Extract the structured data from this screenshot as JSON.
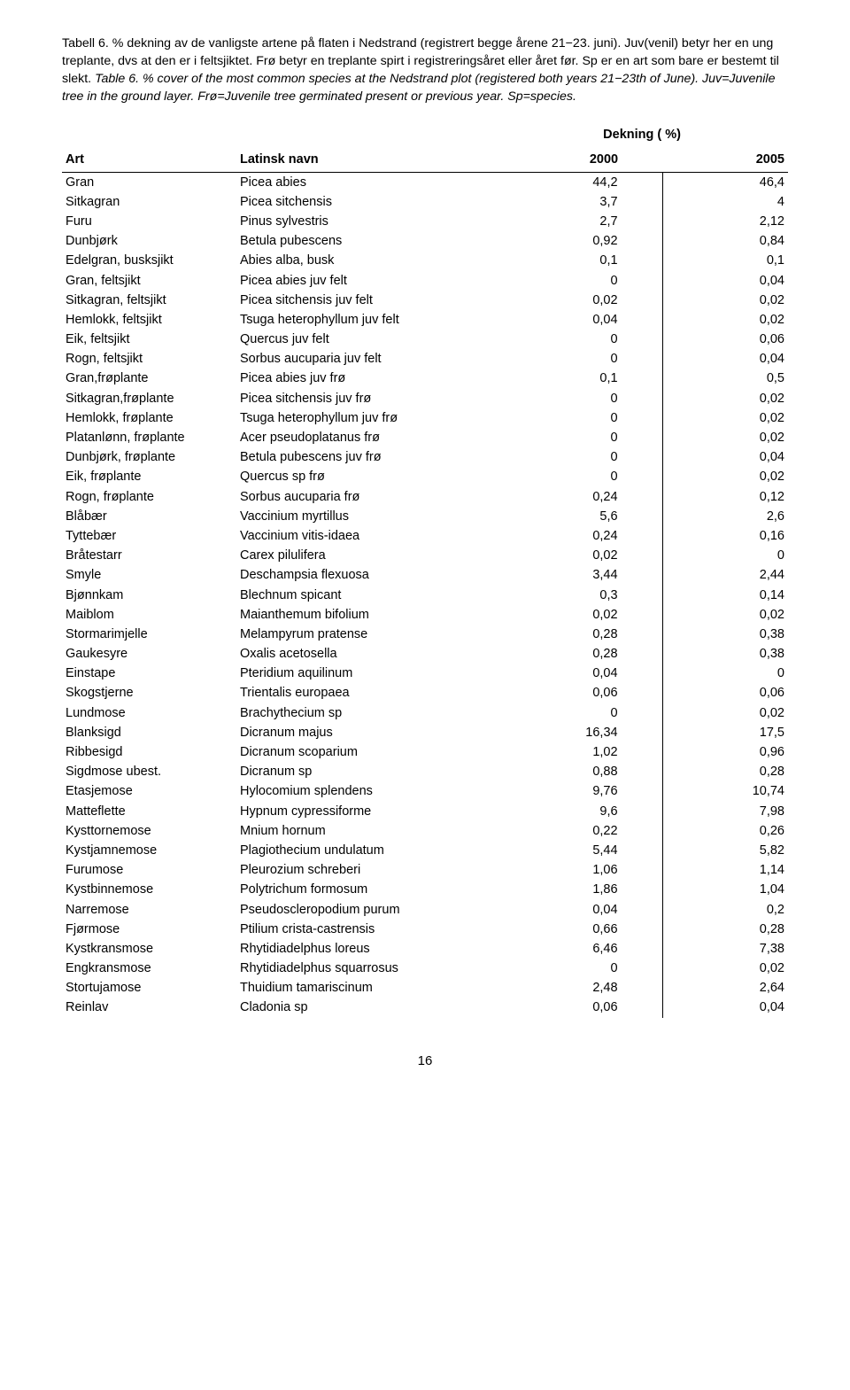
{
  "caption": {
    "norwegian_part1": "Tabell 6. % dekning av de vanligste artene på flaten i Nedstrand (registrert begge årene 21−23. juni). Juv(venil) betyr her en ung treplante, dvs at den er i feltsjiktet. Frø betyr en treplante spirt i registreringsåret eller året før. Sp er en art som bare er bestemt til slekt.",
    "english_part": "Table 6. % cover of the most common species at the Nedstrand plot (registered both years 21−23th of June). Juv=Juvenile tree in the ground layer. Frø=Juvenile tree germinated present or previous year. Sp=species."
  },
  "headers": {
    "dekning": "Dekning ( %)",
    "art": "Art",
    "latin": "Latinsk navn",
    "y2000": "2000",
    "y2005": "2005"
  },
  "rows": [
    {
      "art": "Gran",
      "latin": "Picea abies",
      "v1": "44,2",
      "v2": "46,4"
    },
    {
      "art": "Sitkagran",
      "latin": "Picea sitchensis",
      "v1": "3,7",
      "v2": "4"
    },
    {
      "art": "Furu",
      "latin": "Pinus sylvestris",
      "v1": "2,7",
      "v2": "2,12"
    },
    {
      "art": "Dunbjørk",
      "latin": "Betula pubescens",
      "v1": "0,92",
      "v2": "0,84"
    },
    {
      "art": "Edelgran, busksjikt",
      "latin": "Abies alba, busk",
      "v1": "0,1",
      "v2": "0,1"
    },
    {
      "art": "Gran, feltsjikt",
      "latin": "Picea abies juv felt",
      "v1": "0",
      "v2": "0,04"
    },
    {
      "art": "Sitkagran, feltsjikt",
      "latin": "Picea sitchensis juv felt",
      "v1": "0,02",
      "v2": "0,02"
    },
    {
      "art": "Hemlokk, feltsjikt",
      "latin": "Tsuga heterophyllum juv felt",
      "v1": "0,04",
      "v2": "0,02"
    },
    {
      "art": "Eik, feltsjikt",
      "latin": "Quercus juv felt",
      "v1": "0",
      "v2": "0,06"
    },
    {
      "art": "Rogn, feltsjikt",
      "latin": "Sorbus aucuparia juv felt",
      "v1": "0",
      "v2": "0,04"
    },
    {
      "art": "Gran,frøplante",
      "latin": "Picea abies juv frø",
      "v1": "0,1",
      "v2": "0,5"
    },
    {
      "art": "Sitkagran,frøplante",
      "latin": "Picea sitchensis juv frø",
      "v1": "0",
      "v2": "0,02"
    },
    {
      "art": "Hemlokk, frøplante",
      "latin": "Tsuga heterophyllum juv frø",
      "v1": "0",
      "v2": "0,02"
    },
    {
      "art": "Platanlønn, frøplante",
      "latin": "Acer pseudoplatanus frø",
      "v1": "0",
      "v2": "0,02"
    },
    {
      "art": "Dunbjørk, frøplante",
      "latin": "Betula pubescens juv frø",
      "v1": "0",
      "v2": "0,04"
    },
    {
      "art": "Eik, frøplante",
      "latin": "Quercus sp frø",
      "v1": "0",
      "v2": "0,02"
    },
    {
      "art": "Rogn, frøplante",
      "latin": "Sorbus aucuparia frø",
      "v1": "0,24",
      "v2": "0,12"
    },
    {
      "art": "Blåbær",
      "latin": "Vaccinium myrtillus",
      "v1": "5,6",
      "v2": "2,6"
    },
    {
      "art": "Tyttebær",
      "latin": "Vaccinium vitis-idaea",
      "v1": "0,24",
      "v2": "0,16"
    },
    {
      "art": "Bråtestarr",
      "latin": "Carex pilulifera",
      "v1": "0,02",
      "v2": "0"
    },
    {
      "art": "Smyle",
      "latin": "Deschampsia flexuosa",
      "v1": "3,44",
      "v2": "2,44"
    },
    {
      "art": "Bjønnkam",
      "latin": "Blechnum spicant",
      "v1": "0,3",
      "v2": "0,14"
    },
    {
      "art": "Maiblom",
      "latin": "Maianthemum bifolium",
      "v1": "0,02",
      "v2": "0,02"
    },
    {
      "art": "Stormarimjelle",
      "latin": "Melampyrum pratense",
      "v1": "0,28",
      "v2": "0,38"
    },
    {
      "art": "Gaukesyre",
      "latin": "Oxalis acetosella",
      "v1": "0,28",
      "v2": "0,38"
    },
    {
      "art": "Einstape",
      "latin": "Pteridium aquilinum",
      "v1": "0,04",
      "v2": "0"
    },
    {
      "art": "Skogstjerne",
      "latin": "Trientalis europaea",
      "v1": "0,06",
      "v2": "0,06"
    },
    {
      "art": "Lundmose",
      "latin": "Brachythecium sp",
      "v1": "0",
      "v2": "0,02"
    },
    {
      "art": "Blanksigd",
      "latin": "Dicranum majus",
      "v1": "16,34",
      "v2": "17,5"
    },
    {
      "art": "Ribbesigd",
      "latin": "Dicranum scoparium",
      "v1": "1,02",
      "v2": "0,96"
    },
    {
      "art": "Sigdmose ubest.",
      "latin": "Dicranum sp",
      "v1": "0,88",
      "v2": "0,28"
    },
    {
      "art": "Etasjemose",
      "latin": "Hylocomium splendens",
      "v1": "9,76",
      "v2": "10,74"
    },
    {
      "art": "Matteflette",
      "latin": "Hypnum cypressiforme",
      "v1": "9,6",
      "v2": "7,98"
    },
    {
      "art": "Kysttornemose",
      "latin": "Mnium hornum",
      "v1": "0,22",
      "v2": "0,26"
    },
    {
      "art": "Kystjamnemose",
      "latin": "Plagiothecium undulatum",
      "v1": "5,44",
      "v2": "5,82"
    },
    {
      "art": "Furumose",
      "latin": "Pleurozium schreberi",
      "v1": "1,06",
      "v2": "1,14"
    },
    {
      "art": "Kystbinnemose",
      "latin": "Polytrichum formosum",
      "v1": "1,86",
      "v2": "1,04"
    },
    {
      "art": "Narremose",
      "latin": "Pseudoscleropodium purum",
      "v1": "0,04",
      "v2": "0,2"
    },
    {
      "art": "Fjørmose",
      "latin": "Ptilium crista-castrensis",
      "v1": "0,66",
      "v2": "0,28"
    },
    {
      "art": "Kystkransmose",
      "latin": "Rhytidiadelphus loreus",
      "v1": "6,46",
      "v2": "7,38"
    },
    {
      "art": "Engkransmose",
      "latin": "Rhytidiadelphus squarrosus",
      "v1": "0",
      "v2": "0,02"
    },
    {
      "art": "Stortujamose",
      "latin": "Thuidium tamariscinum",
      "v1": "2,48",
      "v2": "2,64"
    },
    {
      "art": "Reinlav",
      "latin": "Cladonia sp",
      "v1": "0,06",
      "v2": "0,04"
    }
  ],
  "pagenum": "16"
}
